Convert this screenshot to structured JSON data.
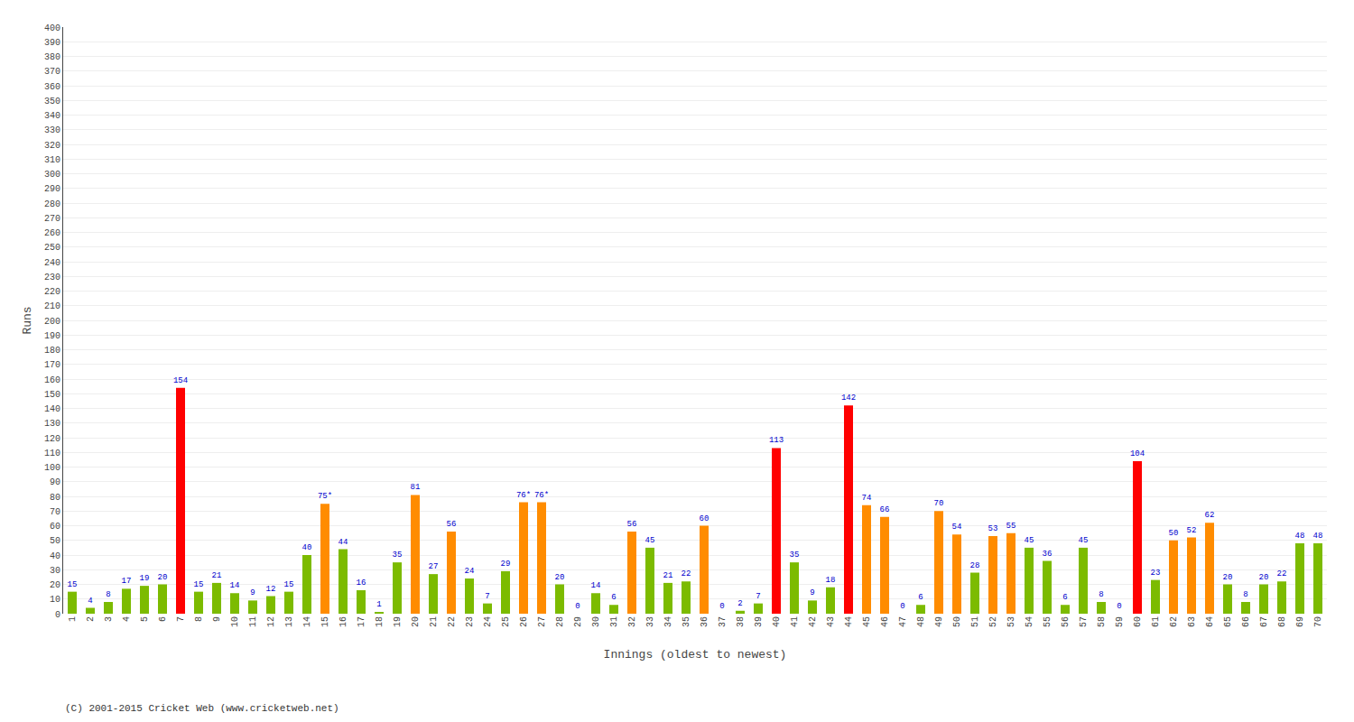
{
  "chart_data": {
    "type": "bar",
    "xlabel": "Innings (oldest to newest)",
    "ylabel": "Runs",
    "categories": [
      "1",
      "2",
      "3",
      "4",
      "5",
      "6",
      "7",
      "8",
      "9",
      "10",
      "11",
      "12",
      "13",
      "14",
      "15",
      "16",
      "17",
      "18",
      "19",
      "20",
      "21",
      "22",
      "23",
      "24",
      "25",
      "26",
      "27",
      "28",
      "29",
      "30",
      "31",
      "32",
      "33",
      "34",
      "35",
      "36",
      "37",
      "38",
      "39",
      "40",
      "41",
      "42",
      "43",
      "44",
      "45",
      "46",
      "47",
      "48",
      "49",
      "50",
      "51",
      "52",
      "53",
      "54",
      "55",
      "56",
      "57",
      "58",
      "59",
      "60",
      "61",
      "62",
      "63",
      "64",
      "65",
      "66",
      "67",
      "68",
      "69",
      "70"
    ],
    "values": [
      15,
      4,
      8,
      17,
      19,
      20,
      154,
      15,
      21,
      14,
      9,
      12,
      15,
      40,
      75,
      44,
      16,
      1,
      35,
      81,
      27,
      56,
      24,
      7,
      29,
      76,
      76,
      20,
      0,
      14,
      6,
      56,
      45,
      21,
      22,
      60,
      0,
      2,
      7,
      113,
      35,
      9,
      18,
      142,
      74,
      66,
      0,
      6,
      70,
      54,
      28,
      53,
      55,
      45,
      36,
      6,
      45,
      8,
      0,
      104,
      23,
      50,
      52,
      62,
      20,
      8,
      20,
      22,
      48,
      48
    ],
    "value_labels": [
      "15",
      "4",
      "8",
      "17",
      "19",
      "20",
      "154",
      "15",
      "21",
      "14",
      "9",
      "12",
      "15",
      "40",
      "75*",
      "44",
      "16",
      "1",
      "35",
      "81",
      "27",
      "56",
      "24",
      "7",
      "29",
      "76*",
      "76*",
      "20",
      "0",
      "14",
      "6",
      "56",
      "45",
      "21",
      "22",
      "60",
      "0",
      "2",
      "7",
      "113",
      "35",
      "9",
      "18",
      "142",
      "74",
      "66",
      "0",
      "6",
      "70",
      "54",
      "28",
      "53",
      "55",
      "45",
      "36",
      "6",
      "45",
      "8",
      "0",
      "104",
      "23",
      "50",
      "52",
      "62",
      "20",
      "8",
      "20",
      "22",
      "48",
      "48"
    ],
    "colors": [
      "#7cbb00",
      "#7cbb00",
      "#7cbb00",
      "#7cbb00",
      "#7cbb00",
      "#7cbb00",
      "#ff0000",
      "#7cbb00",
      "#7cbb00",
      "#7cbb00",
      "#7cbb00",
      "#7cbb00",
      "#7cbb00",
      "#7cbb00",
      "#ff8c00",
      "#7cbb00",
      "#7cbb00",
      "#7cbb00",
      "#7cbb00",
      "#ff8c00",
      "#7cbb00",
      "#ff8c00",
      "#7cbb00",
      "#7cbb00",
      "#7cbb00",
      "#ff8c00",
      "#ff8c00",
      "#7cbb00",
      "#7cbb00",
      "#7cbb00",
      "#7cbb00",
      "#ff8c00",
      "#7cbb00",
      "#7cbb00",
      "#7cbb00",
      "#ff8c00",
      "#7cbb00",
      "#7cbb00",
      "#7cbb00",
      "#ff0000",
      "#7cbb00",
      "#7cbb00",
      "#7cbb00",
      "#ff0000",
      "#ff8c00",
      "#ff8c00",
      "#7cbb00",
      "#7cbb00",
      "#ff8c00",
      "#ff8c00",
      "#7cbb00",
      "#ff8c00",
      "#ff8c00",
      "#7cbb00",
      "#7cbb00",
      "#7cbb00",
      "#7cbb00",
      "#7cbb00",
      "#7cbb00",
      "#ff0000",
      "#7cbb00",
      "#ff8c00",
      "#ff8c00",
      "#ff8c00",
      "#7cbb00",
      "#7cbb00",
      "#7cbb00",
      "#7cbb00",
      "#7cbb00",
      "#7cbb00"
    ],
    "ylim": [
      0,
      400
    ],
    "yticks": [
      0,
      10,
      20,
      30,
      40,
      50,
      60,
      70,
      80,
      90,
      100,
      110,
      120,
      130,
      140,
      150,
      160,
      170,
      180,
      190,
      200,
      210,
      220,
      230,
      240,
      250,
      260,
      270,
      280,
      290,
      300,
      310,
      320,
      330,
      340,
      350,
      360,
      370,
      380,
      390,
      400
    ],
    "grid": true,
    "data_labels": true,
    "annotations": [
      "(C) 2001-2015 Cricket Web (www.cricketweb.net)"
    ]
  }
}
